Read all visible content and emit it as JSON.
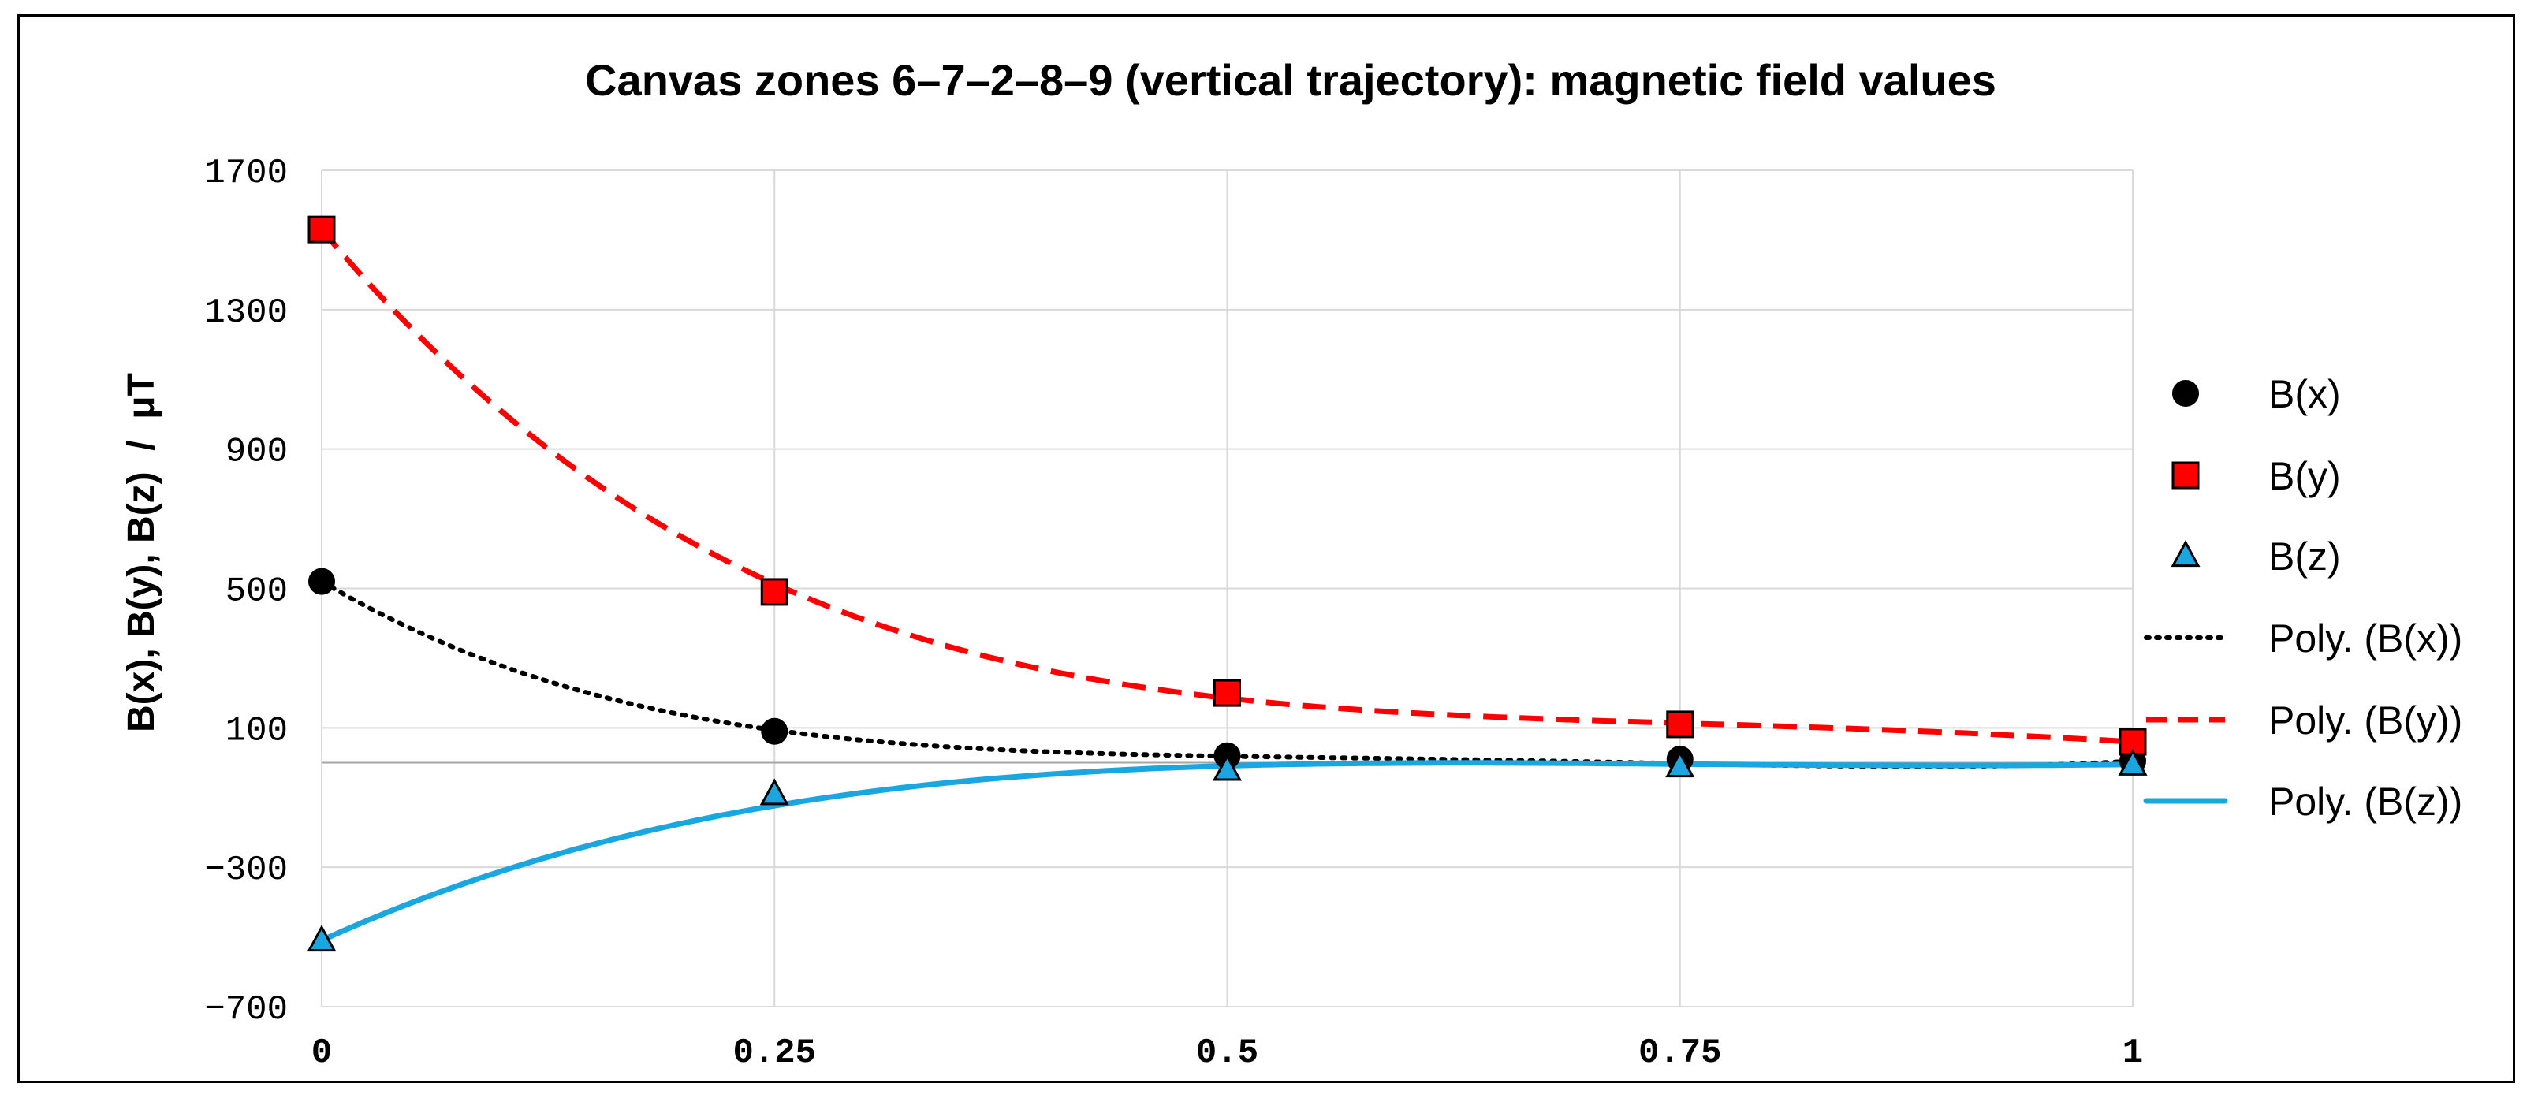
{
  "chart_data": {
    "type": "scatter",
    "title": "Canvas zones 6–7–2–8–9 (vertical trajectory): magnetic field values",
    "xlabel": "",
    "ylabel": "B(x), B(y), B(z)  /  μT",
    "xlim": [
      0,
      1
    ],
    "ylim": [
      -700,
      1700
    ],
    "xticks": [
      0,
      0.25,
      0.5,
      0.75,
      1
    ],
    "xtick_labels": [
      "0",
      "0.25",
      "0.5",
      "0.75",
      "1"
    ],
    "yticks": [
      1700,
      1300,
      900,
      500,
      100,
      -300,
      -700
    ],
    "ytick_labels": [
      "1700",
      "1300",
      "900",
      "500",
      "100",
      "−300",
      "−700"
    ],
    "grid": true,
    "legend_position": "right",
    "series": [
      {
        "name": "B(x)",
        "marker": "circle",
        "color": "#000000",
        "x": [
          0,
          0.25,
          0.5,
          0.75,
          1
        ],
        "values": [
          520,
          90,
          20,
          10,
          5
        ]
      },
      {
        "name": "B(y)",
        "marker": "square",
        "color": "#ff0000",
        "x": [
          0,
          0.25,
          0.5,
          0.75,
          1
        ],
        "values": [
          1530,
          490,
          200,
          110,
          60
        ]
      },
      {
        "name": "B(z)",
        "marker": "triangle",
        "color": "#1aa7e0",
        "x": [
          0,
          0.25,
          0.5,
          0.75,
          1
        ],
        "values": [
          -510,
          -90,
          -20,
          -10,
          -5
        ]
      }
    ],
    "trendlines": [
      {
        "name": "Poly. (B(x))",
        "style": "dotted",
        "color": "#000000",
        "coefficients": [
          520,
          -3077,
          7184,
          -7520,
          2898
        ]
      },
      {
        "name": "Poly. (B(y))",
        "style": "dashed",
        "color": "#ff0000",
        "coefficients": [
          1530,
          -6213,
          10379,
          -7696,
          2060
        ]
      },
      {
        "name": "Poly. (B(z))",
        "style": "solid",
        "color": "#1aa7e0",
        "coefficients": [
          -510,
          2365,
          -3907,
          2677,
          -630
        ]
      }
    ]
  }
}
